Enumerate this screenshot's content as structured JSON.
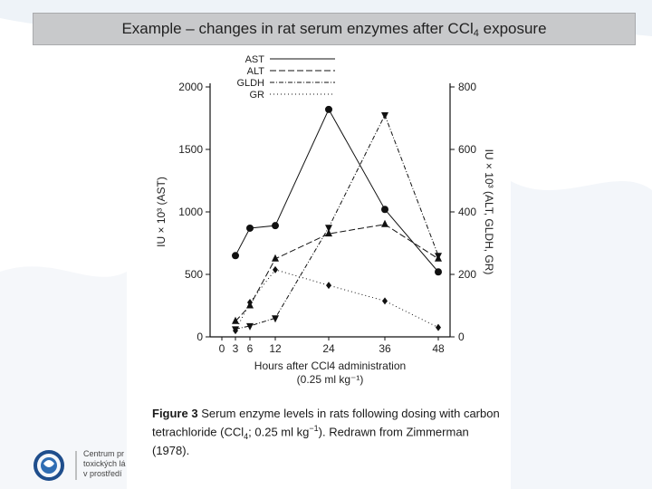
{
  "slide": {
    "title_main": "Example – changes in rat serum enzymes after CCl",
    "title_sub": "4",
    "title_end": " exposure"
  },
  "logo": {
    "line1": "Centrum pr",
    "line2": "toxických lá",
    "line3": "v prostředí"
  },
  "caption": {
    "label": "Figure 3",
    "text_a": "Serum enzyme levels in rats following dosing with carbon tetrachloride (CCl",
    "text_sub": "4",
    "text_b": "; 0.25 ml kg",
    "text_sup": "−1",
    "text_c": "). Redrawn from Zimmerman (1978)."
  },
  "colors": {
    "title_bar": "#c8c9cb",
    "ink": "#111111",
    "swoosh": "#dce7f1"
  },
  "chart_data": {
    "type": "line",
    "xlabel_line1": "Hours after CCl4 administration",
    "xlabel_line2": "(0.25 ml kg⁻¹)",
    "ylabel_left": "IU × 10³ (AST)",
    "ylabel_right": "IU × 10³ (ALT, GLDH, GR)",
    "x_ticks": [
      0,
      3,
      6,
      12,
      24,
      36,
      48
    ],
    "y_left_ticks": [
      0,
      500,
      1000,
      1500,
      2000
    ],
    "y_right_ticks": [
      0,
      200,
      400,
      600,
      800
    ],
    "ylim_left": [
      0,
      2000
    ],
    "ylim_right": [
      0,
      800
    ],
    "legend_position": "top-left",
    "series": [
      {
        "name": "AST",
        "axis": "left",
        "marker": "circle",
        "dash": "",
        "x": [
          3,
          6,
          12,
          24,
          36,
          48
        ],
        "y": [
          650,
          870,
          890,
          1820,
          1020,
          520
        ]
      },
      {
        "name": "ALT",
        "axis": "right",
        "marker": "triangle",
        "dash": "7 3",
        "x": [
          3,
          6,
          12,
          24,
          36,
          48
        ],
        "y": [
          50,
          100,
          250,
          330,
          360,
          250
        ]
      },
      {
        "name": "GLDH",
        "axis": "right",
        "marker": "triangle-down",
        "dash": "5 2 1 2",
        "x": [
          3,
          6,
          12,
          24,
          36,
          48
        ],
        "y": [
          25,
          35,
          60,
          350,
          710,
          260
        ]
      },
      {
        "name": "GR",
        "axis": "right",
        "marker": "diamond",
        "dash": "1 3",
        "x": [
          3,
          6,
          12,
          24,
          36,
          48
        ],
        "y": [
          20,
          110,
          215,
          165,
          115,
          30
        ]
      }
    ]
  }
}
